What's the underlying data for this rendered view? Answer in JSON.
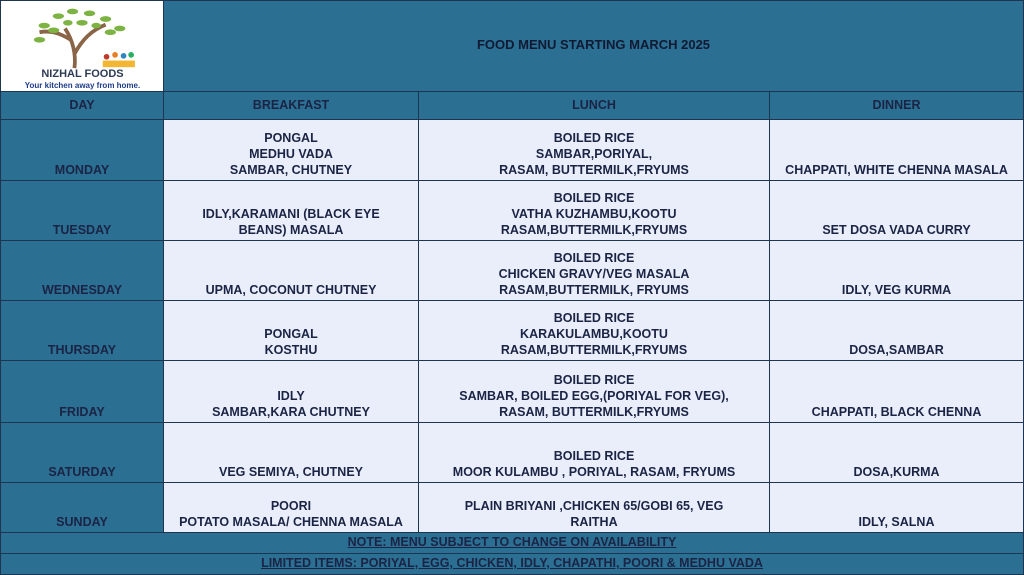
{
  "brand": {
    "name": "NIZHAL FOODS",
    "tagline": "Your kitchen away from home."
  },
  "title": "FOOD MENU STARTING MARCH 2025",
  "headers": [
    "DAY",
    "BREAKFAST",
    "LUNCH",
    "DINNER"
  ],
  "rows": [
    {
      "day": "MONDAY",
      "breakfast": [
        "PONGAL",
        "MEDHU VADA",
        "SAMBAR, CHUTNEY"
      ],
      "lunch": [
        "BOILED RICE",
        "SAMBAR,PORIYAL,",
        "RASAM, BUTTERMILK,FRYUMS"
      ],
      "dinner": [
        "CHAPPATI, WHITE CHENNA MASALA"
      ]
    },
    {
      "day": "TUESDAY",
      "breakfast": [
        "IDLY,KARAMANI (BLACK EYE",
        "BEANS) MASALA"
      ],
      "lunch": [
        "BOILED RICE",
        "VATHA KUZHAMBU,KOOTU",
        "RASAM,BUTTERMILK,FRYUMS"
      ],
      "dinner": [
        "SET DOSA VADA CURRY"
      ]
    },
    {
      "day": "WEDNESDAY",
      "breakfast": [
        "UPMA, COCONUT CHUTNEY"
      ],
      "lunch": [
        "BOILED RICE",
        "CHICKEN GRAVY/VEG MASALA",
        "RASAM,BUTTERMILK, FRYUMS"
      ],
      "dinner": [
        "IDLY, VEG KURMA"
      ]
    },
    {
      "day": "THURSDAY",
      "breakfast": [
        "PONGAL",
        "KOSTHU"
      ],
      "lunch": [
        "BOILED RICE",
        "KARAKULAMBU,KOOTU",
        "RASAM,BUTTERMILK,FRYUMS"
      ],
      "dinner": [
        "DOSA,SAMBAR"
      ]
    },
    {
      "day": "FRIDAY",
      "breakfast": [
        "IDLY",
        "SAMBAR,KARA CHUTNEY"
      ],
      "lunch": [
        "BOILED RICE",
        "SAMBAR, BOILED EGG,(PORIYAL FOR VEG),",
        "RASAM, BUTTERMILK,FRYUMS"
      ],
      "dinner": [
        "CHAPPATI, BLACK CHENNA"
      ]
    },
    {
      "day": "SATURDAY",
      "breakfast": [
        "VEG SEMIYA, CHUTNEY"
      ],
      "lunch": [
        "BOILED RICE",
        "MOOR KULAMBU , PORIYAL, RASAM, FRYUMS"
      ],
      "dinner": [
        "DOSA,KURMA"
      ]
    },
    {
      "day": "SUNDAY",
      "breakfast": [
        "POORI",
        "POTATO MASALA/ CHENNA MASALA"
      ],
      "lunch": [
        "PLAIN BRIYANI ,CHICKEN 65/GOBI 65, VEG",
        "RAITHA"
      ],
      "dinner": [
        "IDLY, SALNA"
      ]
    }
  ],
  "note": "NOTE: MENU SUBJECT TO CHANGE ON AVAILABILITY",
  "limited": "LIMITED ITEMS: PORIYAL, EGG, CHICKEN, IDLY, CHAPATHI, POORI & MEDHU VADA",
  "colors": {
    "header": "#2b6f93",
    "cell": "#e9eefa",
    "text": "#1b2444"
  }
}
